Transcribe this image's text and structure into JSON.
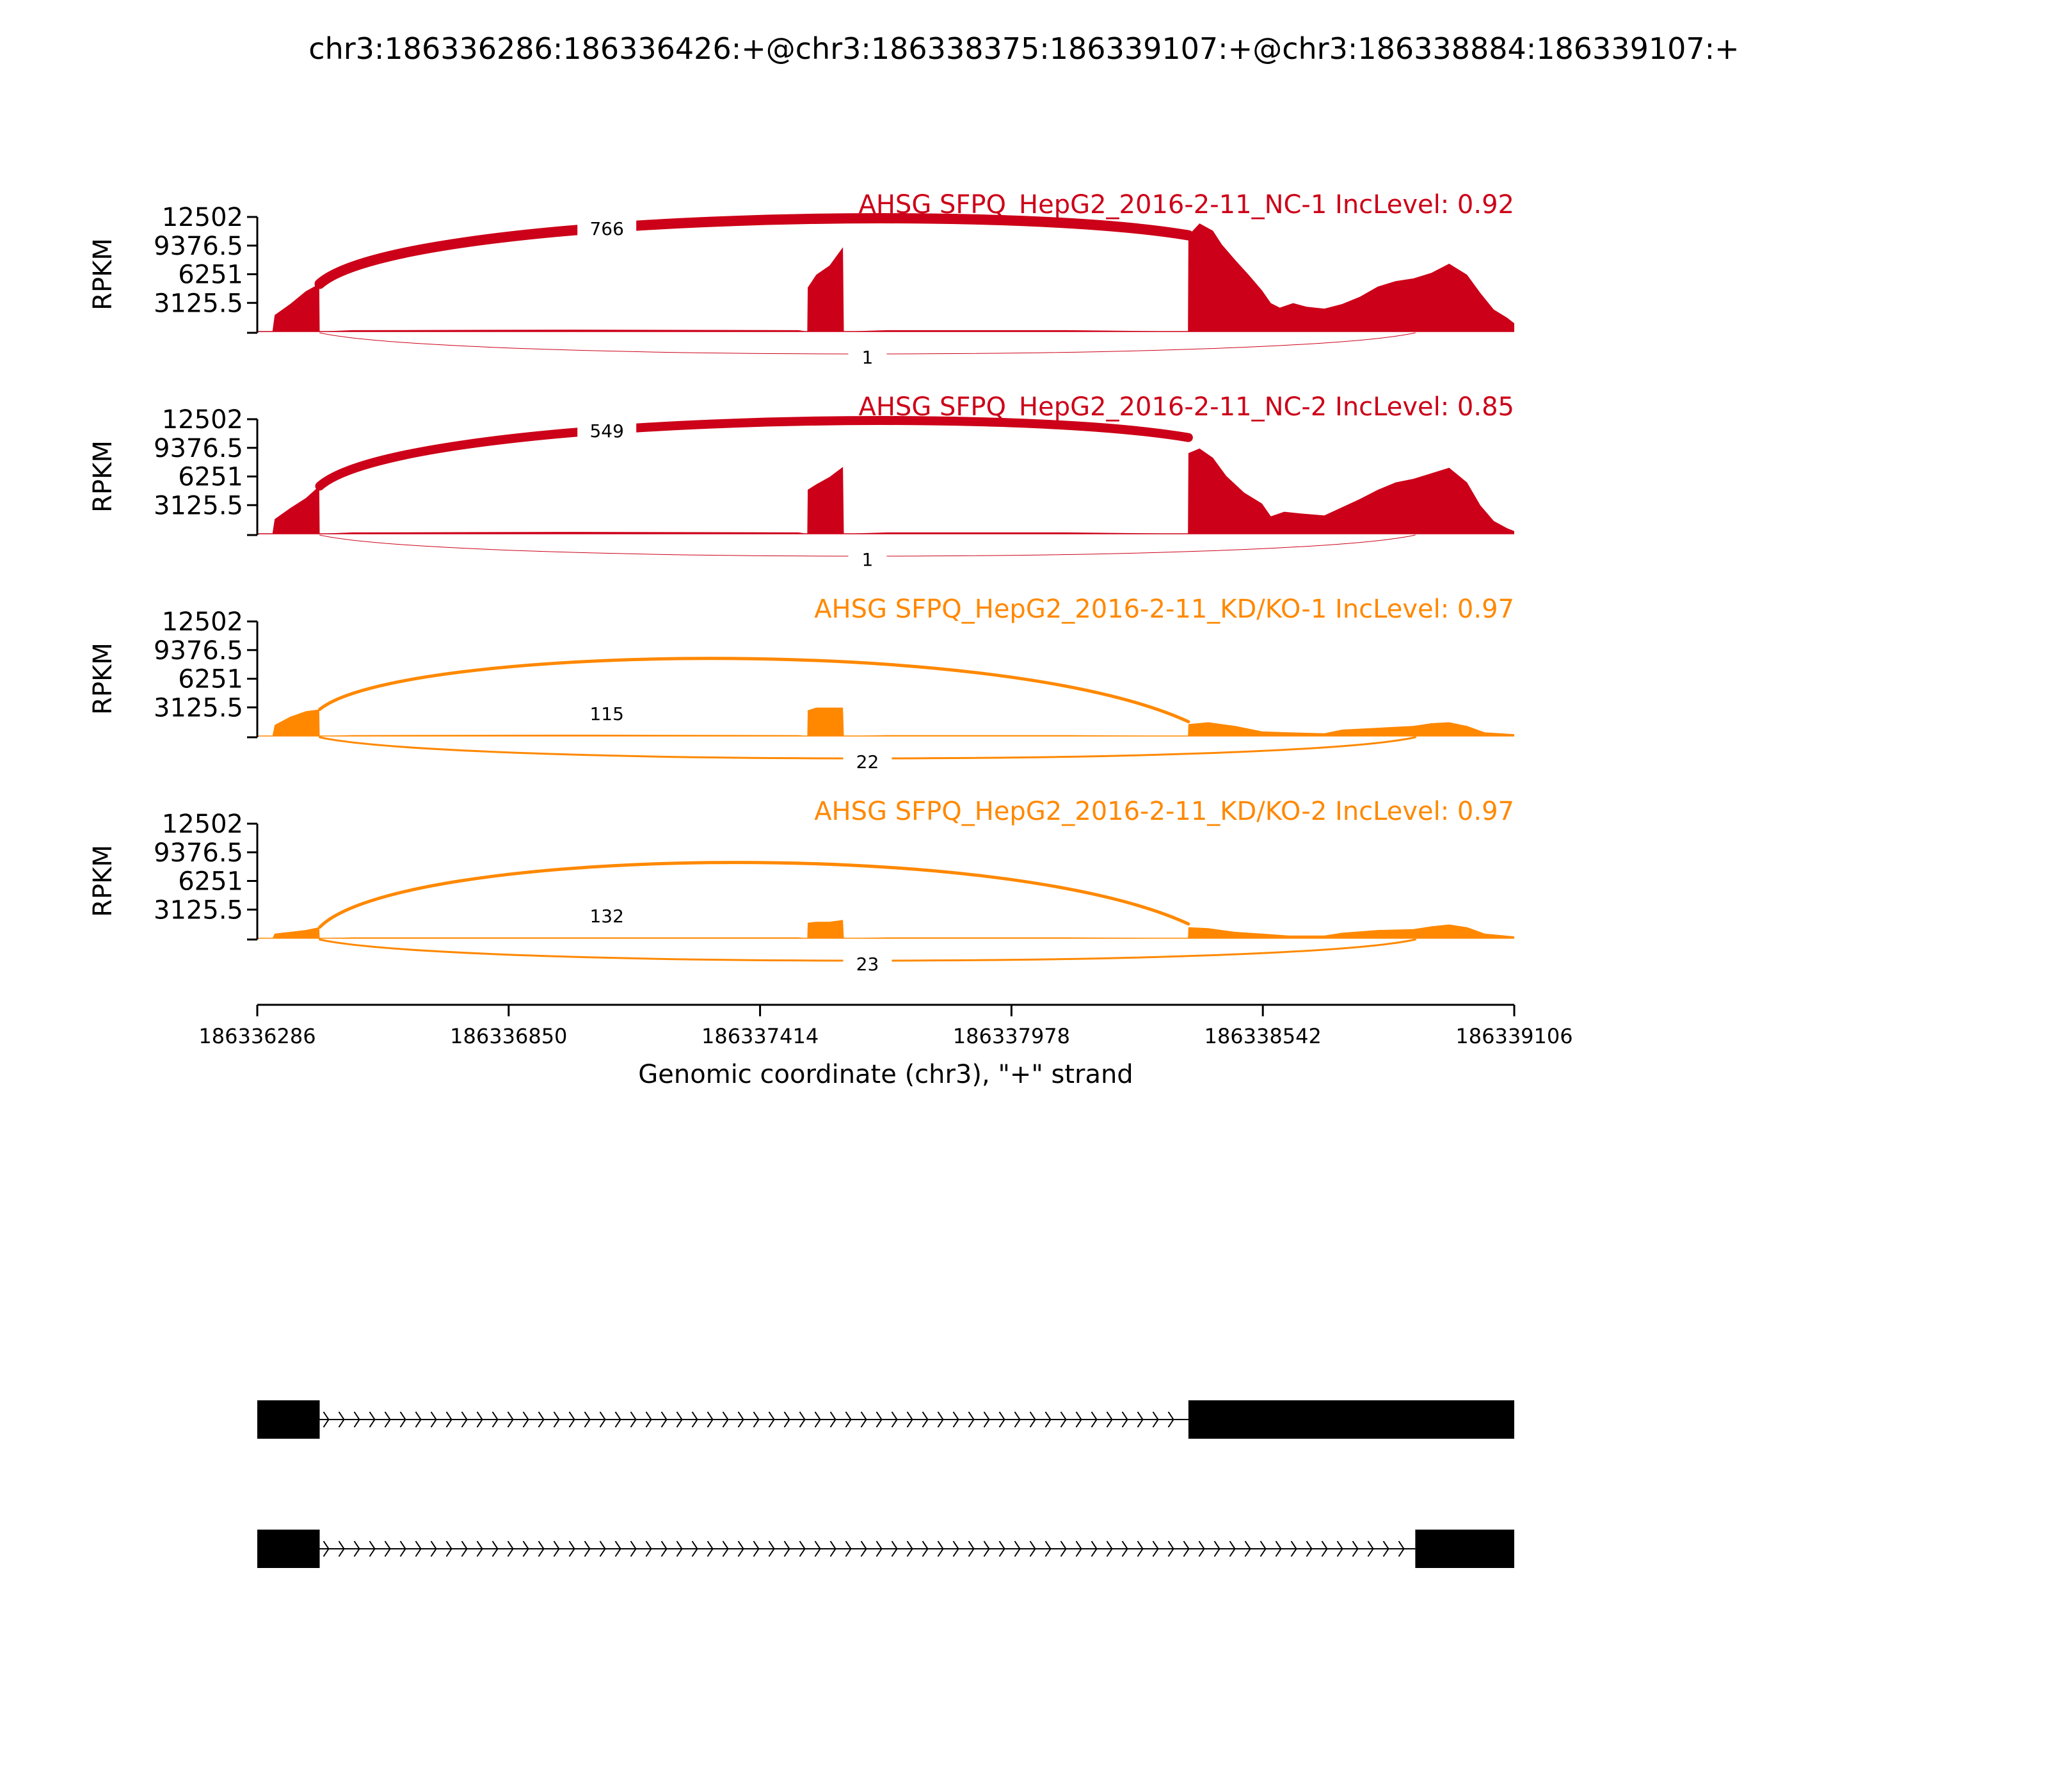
{
  "figure": {
    "title": "chr3:186336286:186336426:+@chr3:186338375:186339107:+@chr3:186338884:186339107:+"
  },
  "colors": {
    "nc": "#cc0018",
    "kd": "#ff8800",
    "axis": "#000000",
    "gene": "#000000"
  },
  "chart_data": {
    "type": "area",
    "subtype": "sashimi",
    "title": "chr3:186336286:186336426:+@chr3:186338375:186339107:+@chr3:186338884:186339107:+",
    "xlabel": "Genomic coordinate (chr3), \"+\" strand",
    "ylabel": "RPKM",
    "xlim": [
      186336286,
      186339106
    ],
    "ylim": [
      0,
      12502
    ],
    "xticks": [
      "186336286",
      "186336850",
      "186337414",
      "186337978",
      "186338542",
      "186339106"
    ],
    "yticks": [
      "12502",
      "9376.5",
      "6251",
      "3125.5"
    ],
    "grid": false,
    "tracks": [
      {
        "label": "AHSG SFPQ_HepG2_2016-2-11_NC-1 IncLevel: 0.92",
        "color_key": "nc",
        "coverage": [
          [
            186336286,
            0
          ],
          [
            186336320,
            0
          ],
          [
            186336325,
            1800
          ],
          [
            186336360,
            3000
          ],
          [
            186336395,
            4400
          ],
          [
            186336425,
            5200
          ],
          [
            186336426,
            0
          ],
          [
            186336500,
            150
          ],
          [
            186337000,
            200
          ],
          [
            186337500,
            150
          ],
          [
            186337520,
            0
          ],
          [
            186337521,
            4800
          ],
          [
            186337540,
            6200
          ],
          [
            186337570,
            7200
          ],
          [
            186337600,
            9200
          ],
          [
            186337602,
            0
          ],
          [
            186337700,
            150
          ],
          [
            186338100,
            150
          ],
          [
            186338374,
            0
          ],
          [
            186338375,
            10500
          ],
          [
            186338400,
            11800
          ],
          [
            186338430,
            11000
          ],
          [
            186338450,
            9500
          ],
          [
            186338480,
            7800
          ],
          [
            186338510,
            6200
          ],
          [
            186338540,
            4500
          ],
          [
            186338560,
            3100
          ],
          [
            186338580,
            2600
          ],
          [
            186338610,
            3100
          ],
          [
            186338640,
            2700
          ],
          [
            186338680,
            2500
          ],
          [
            186338720,
            3000
          ],
          [
            186338760,
            3800
          ],
          [
            186338800,
            4900
          ],
          [
            186338840,
            5500
          ],
          [
            186338880,
            5800
          ],
          [
            186338920,
            6400
          ],
          [
            186338960,
            7400
          ],
          [
            186339000,
            6200
          ],
          [
            186339030,
            4200
          ],
          [
            186339060,
            2400
          ],
          [
            186339090,
            1500
          ],
          [
            186339106,
            900
          ]
        ],
        "junctions": [
          {
            "start": 186336426,
            "end": 186338375,
            "count": "766",
            "side": "above",
            "width": 16
          },
          {
            "start": 186336426,
            "end": 186338884,
            "count": "1",
            "side": "below",
            "width": 1
          }
        ]
      },
      {
        "label": "AHSG SFPQ_HepG2_2016-2-11_NC-2 IncLevel: 0.85",
        "color_key": "nc",
        "coverage": [
          [
            186336286,
            0
          ],
          [
            186336320,
            0
          ],
          [
            186336325,
            1600
          ],
          [
            186336360,
            2800
          ],
          [
            186336395,
            3900
          ],
          [
            186336425,
            5200
          ],
          [
            186336426,
            0
          ],
          [
            186336500,
            150
          ],
          [
            186337000,
            200
          ],
          [
            186337500,
            150
          ],
          [
            186337520,
            0
          ],
          [
            186337521,
            4800
          ],
          [
            186337540,
            5400
          ],
          [
            186337570,
            6200
          ],
          [
            186337600,
            7300
          ],
          [
            186337602,
            0
          ],
          [
            186337700,
            150
          ],
          [
            186338100,
            150
          ],
          [
            186338374,
            0
          ],
          [
            186338375,
            8800
          ],
          [
            186338400,
            9300
          ],
          [
            186338430,
            8300
          ],
          [
            186338460,
            6300
          ],
          [
            186338500,
            4500
          ],
          [
            186338540,
            3300
          ],
          [
            186338560,
            1900
          ],
          [
            186338590,
            2400
          ],
          [
            186338630,
            2200
          ],
          [
            186338680,
            2000
          ],
          [
            186338720,
            2900
          ],
          [
            186338760,
            3800
          ],
          [
            186338800,
            4800
          ],
          [
            186338840,
            5600
          ],
          [
            186338880,
            6000
          ],
          [
            186338920,
            6600
          ],
          [
            186338960,
            7200
          ],
          [
            186339000,
            5600
          ],
          [
            186339030,
            3100
          ],
          [
            186339060,
            1400
          ],
          [
            186339090,
            600
          ],
          [
            186339106,
            300
          ]
        ],
        "junctions": [
          {
            "start": 186336426,
            "end": 186338375,
            "count": "549",
            "side": "above",
            "width": 14
          },
          {
            "start": 186336426,
            "end": 186338884,
            "count": "1",
            "side": "below",
            "width": 1
          }
        ]
      },
      {
        "label": "AHSG SFPQ_HepG2_2016-2-11_KD/KO-1 IncLevel: 0.97",
        "color_key": "kd",
        "coverage": [
          [
            186336286,
            0
          ],
          [
            186336320,
            0
          ],
          [
            186336325,
            1200
          ],
          [
            186336360,
            2100
          ],
          [
            186336395,
            2700
          ],
          [
            186336425,
            2900
          ],
          [
            186336426,
            0
          ],
          [
            186336500,
            100
          ],
          [
            186337000,
            150
          ],
          [
            186337500,
            100
          ],
          [
            186337520,
            0
          ],
          [
            186337521,
            2800
          ],
          [
            186337540,
            3100
          ],
          [
            186337570,
            3100
          ],
          [
            186337600,
            3100
          ],
          [
            186337602,
            0
          ],
          [
            186337700,
            100
          ],
          [
            186338100,
            100
          ],
          [
            186338374,
            0
          ],
          [
            186338375,
            1300
          ],
          [
            186338420,
            1500
          ],
          [
            186338480,
            1100
          ],
          [
            186338540,
            500
          ],
          [
            186338600,
            400
          ],
          [
            186338680,
            300
          ],
          [
            186338720,
            700
          ],
          [
            186338800,
            900
          ],
          [
            186338880,
            1100
          ],
          [
            186338920,
            1400
          ],
          [
            186338960,
            1500
          ],
          [
            186339000,
            1100
          ],
          [
            186339040,
            400
          ],
          [
            186339106,
            200
          ]
        ],
        "junctions": [
          {
            "start": 186336426,
            "end": 186338375,
            "count": "115",
            "side": "above",
            "width": 5
          },
          {
            "start": 186336426,
            "end": 186338884,
            "count": "22",
            "side": "below",
            "width": 3
          }
        ]
      },
      {
        "label": "AHSG SFPQ_HepG2_2016-2-11_KD/KO-2 IncLevel: 0.97",
        "color_key": "kd",
        "coverage": [
          [
            186336286,
            0
          ],
          [
            186336320,
            0
          ],
          [
            186336325,
            500
          ],
          [
            186336360,
            700
          ],
          [
            186336395,
            900
          ],
          [
            186336425,
            1200
          ],
          [
            186336426,
            0
          ],
          [
            186336500,
            100
          ],
          [
            186337000,
            100
          ],
          [
            186337500,
            100
          ],
          [
            186337520,
            0
          ],
          [
            186337521,
            1700
          ],
          [
            186337540,
            1800
          ],
          [
            186337570,
            1800
          ],
          [
            186337600,
            2000
          ],
          [
            186337602,
            0
          ],
          [
            186337700,
            100
          ],
          [
            186338100,
            100
          ],
          [
            186338374,
            0
          ],
          [
            186338375,
            1200
          ],
          [
            186338420,
            1100
          ],
          [
            186338480,
            700
          ],
          [
            186338540,
            500
          ],
          [
            186338600,
            300
          ],
          [
            186338680,
            300
          ],
          [
            186338720,
            600
          ],
          [
            186338800,
            900
          ],
          [
            186338880,
            1000
          ],
          [
            186338920,
            1300
          ],
          [
            186338960,
            1500
          ],
          [
            186339000,
            1200
          ],
          [
            186339040,
            500
          ],
          [
            186339106,
            200
          ]
        ],
        "junctions": [
          {
            "start": 186336426,
            "end": 186338375,
            "count": "132",
            "side": "above",
            "width": 5
          },
          {
            "start": 186336426,
            "end": 186338884,
            "count": "23",
            "side": "below",
            "width": 3
          }
        ]
      }
    ],
    "transcripts": [
      {
        "exons": [
          [
            186336286,
            186336426
          ],
          [
            186338375,
            186339106
          ]
        ]
      },
      {
        "exons": [
          [
            186336286,
            186336426
          ],
          [
            186338884,
            186339106
          ]
        ]
      }
    ]
  }
}
